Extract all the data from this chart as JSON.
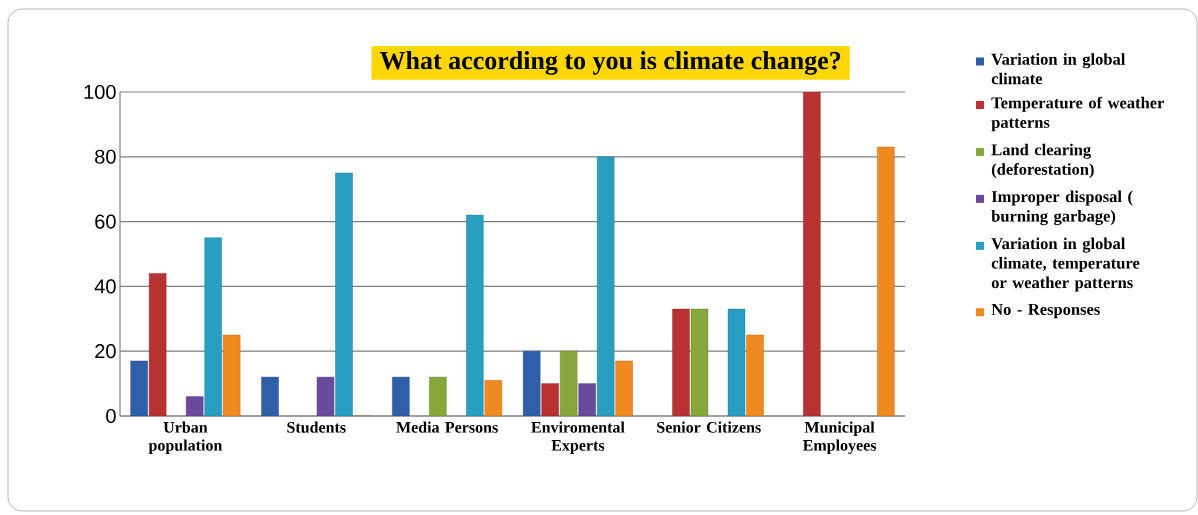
{
  "chart_data": {
    "type": "bar",
    "title": "What according to you is climate change?",
    "categories": [
      "Urban population",
      "Students",
      "Media Persons",
      "Enviromental Experts",
      "Senior Citizens",
      "Municipal Employees"
    ],
    "series": [
      {
        "name": "Variation in global climate",
        "color": "#2e5fa8",
        "values": [
          17,
          12,
          12,
          20,
          null,
          null
        ]
      },
      {
        "name": "Temperature of weather patterns",
        "color": "#b83232",
        "values": [
          44,
          null,
          null,
          10,
          33,
          100
        ]
      },
      {
        "name": "Land clearing (deforestation)",
        "color": "#86a83a",
        "values": [
          null,
          null,
          12,
          20,
          33,
          null
        ]
      },
      {
        "name": "Improper disposal ( burning garbage)",
        "color": "#6a4a9a",
        "values": [
          6,
          12,
          null,
          10,
          null,
          null
        ]
      },
      {
        "name": "Variation in global climate, temperature or weather patterns",
        "color": "#2a9ec0",
        "values": [
          55,
          75,
          62,
          80,
          33,
          null
        ]
      },
      {
        "name": "No - Responses",
        "color": "#f08a20",
        "values": [
          25,
          0,
          11,
          17,
          25,
          83
        ]
      }
    ],
    "ylim": [
      0,
      100
    ],
    "yticks": [
      0,
      20,
      40,
      60,
      80,
      100
    ],
    "grid": "y",
    "legend": "right"
  }
}
